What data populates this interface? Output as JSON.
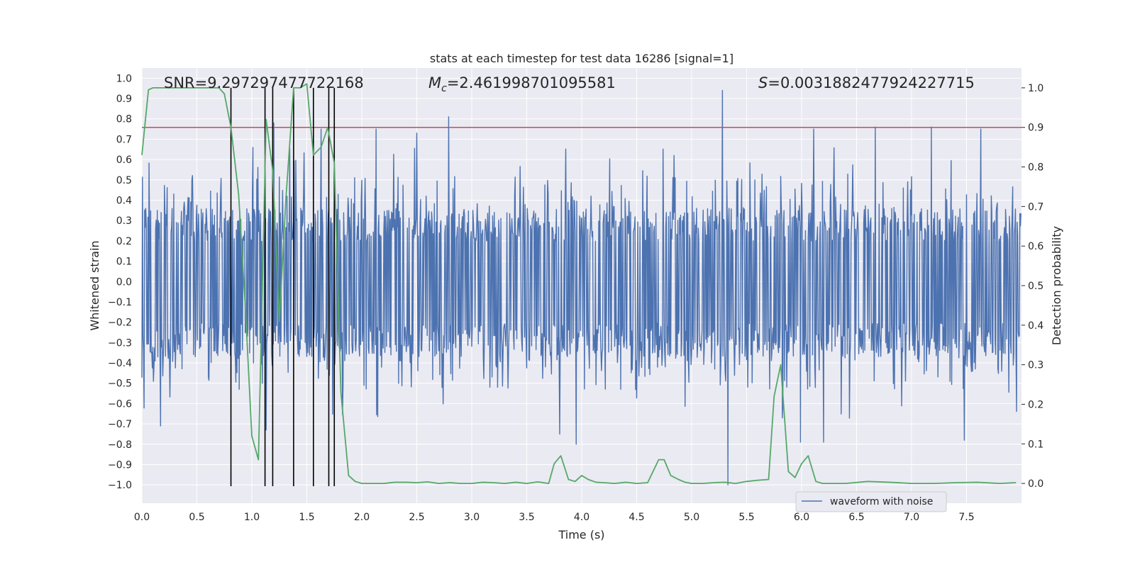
{
  "chart_data": {
    "type": "line",
    "title": "stats at each timestep for test data 16286 [signal=1]",
    "xlabel": "Time (s)",
    "ylabel": "Whitened strain",
    "y2label": "Detection probability",
    "xlim": [
      0.0,
      8.0
    ],
    "ylim": [
      -1.09,
      1.05
    ],
    "y2lim": [
      -0.05,
      1.05
    ],
    "xticks": [
      "0.0",
      "0.5",
      "1.0",
      "1.5",
      "2.0",
      "2.5",
      "3.0",
      "3.5",
      "4.0",
      "4.5",
      "5.0",
      "5.5",
      "6.0",
      "6.5",
      "7.0",
      "7.5"
    ],
    "yticks": [
      "1.0",
      "0.9",
      "0.8",
      "0.7",
      "0.6",
      "0.5",
      "0.4",
      "0.3",
      "0.2",
      "0.1",
      "0.0",
      "-0.1",
      "-0.2",
      "-0.3",
      "-0.4",
      "-0.5",
      "-0.6",
      "-0.7",
      "-0.8",
      "-0.9",
      "-1.0"
    ],
    "y2ticks": [
      "0.0",
      "0.1",
      "0.2",
      "0.3",
      "0.4",
      "0.5",
      "0.6",
      "0.7",
      "0.8",
      "0.9",
      "1.0"
    ],
    "annotations": {
      "snr": "SNR=9.297297477722168",
      "mc_symbol": "M",
      "mc_sub": "c",
      "mc_value": "=2.461998701095581",
      "s_symbol": "S",
      "s_value": "=0.0031882477924227715"
    },
    "legend": {
      "entries": [
        "waveform with noise"
      ],
      "position": "lower-right"
    },
    "threshold": {
      "value": 0.9,
      "axis": "right",
      "color": "#c44e52"
    },
    "vertical_lines": [
      0.81,
      1.12,
      1.19,
      1.38,
      1.56,
      1.7,
      1.75
    ],
    "series": [
      {
        "name": "waveform with noise",
        "axis": "left",
        "color": "#4c72b0",
        "samples": 1600,
        "sample_rate_hz": 200,
        "envelope_max": 0.36,
        "envelope_min": -0.37,
        "peaks": [
          {
            "t": 5.28,
            "v": 0.94
          },
          {
            "t": 2.79,
            "v": 0.81
          },
          {
            "t": 1.2,
            "v": 0.78
          },
          {
            "t": 6.11,
            "v": 0.75
          },
          {
            "t": 6.67,
            "v": 0.76
          },
          {
            "t": 7.18,
            "v": 0.76
          },
          {
            "t": 7.63,
            "v": 0.75
          },
          {
            "t": 1.63,
            "v": 0.75
          },
          {
            "t": 2.13,
            "v": 0.75
          },
          {
            "t": 2.5,
            "v": 0.73
          },
          {
            "t": 5.33,
            "v": -1.0
          },
          {
            "t": 3.95,
            "v": -0.8
          },
          {
            "t": 5.99,
            "v": -0.79
          },
          {
            "t": 6.2,
            "v": -0.79
          },
          {
            "t": 3.8,
            "v": -0.75
          },
          {
            "t": 7.48,
            "v": -0.78
          },
          {
            "t": 1.13,
            "v": -0.73
          },
          {
            "t": 0.17,
            "v": -0.71
          }
        ]
      },
      {
        "name": "detection probability",
        "axis": "right",
        "color": "#55a868",
        "x": [
          0.0,
          0.06,
          0.1,
          0.2,
          0.3,
          0.4,
          0.5,
          0.6,
          0.7,
          0.75,
          0.81,
          0.88,
          0.94,
          1.0,
          1.06,
          1.13,
          1.19,
          1.25,
          1.31,
          1.38,
          1.44,
          1.5,
          1.56,
          1.63,
          1.69,
          1.75,
          1.81,
          1.88,
          1.94,
          2.0,
          2.1,
          2.2,
          2.3,
          2.4,
          2.5,
          2.6,
          2.7,
          2.8,
          2.9,
          3.0,
          3.1,
          3.2,
          3.3,
          3.4,
          3.5,
          3.6,
          3.7,
          3.75,
          3.81,
          3.88,
          3.94,
          4.0,
          4.06,
          4.13,
          4.2,
          4.3,
          4.4,
          4.5,
          4.6,
          4.7,
          4.75,
          4.81,
          4.88,
          4.94,
          5.0,
          5.1,
          5.2,
          5.3,
          5.4,
          5.5,
          5.6,
          5.7,
          5.75,
          5.81,
          5.88,
          5.94,
          6.0,
          6.06,
          6.13,
          6.19,
          6.25,
          6.4,
          6.6,
          6.8,
          7.0,
          7.2,
          7.4,
          7.6,
          7.8,
          7.95
        ],
        "values": [
          0.83,
          0.995,
          1.0,
          1.0,
          1.0,
          1.0,
          1.0,
          1.0,
          1.0,
          0.985,
          0.9,
          0.73,
          0.45,
          0.12,
          0.06,
          0.92,
          0.79,
          0.41,
          0.72,
          1.0,
          1.0,
          1.01,
          0.83,
          0.85,
          0.9,
          0.81,
          0.23,
          0.02,
          0.005,
          0.0,
          0.0,
          0.0,
          0.003,
          0.003,
          0.002,
          0.004,
          0.0,
          0.002,
          0.0,
          0.0,
          0.003,
          0.002,
          0.0,
          0.003,
          0.0,
          0.004,
          0.0,
          0.05,
          0.07,
          0.01,
          0.005,
          0.02,
          0.01,
          0.003,
          0.002,
          0.0,
          0.003,
          0.0,
          0.002,
          0.06,
          0.06,
          0.02,
          0.01,
          0.003,
          0.0,
          0.0,
          0.002,
          0.003,
          0.0,
          0.005,
          0.008,
          0.01,
          0.22,
          0.3,
          0.03,
          0.015,
          0.05,
          0.07,
          0.005,
          0.0,
          0.0,
          0.0,
          0.005,
          0.003,
          0.0,
          0.0,
          0.002,
          0.003,
          0.0,
          0.002
        ]
      }
    ]
  }
}
